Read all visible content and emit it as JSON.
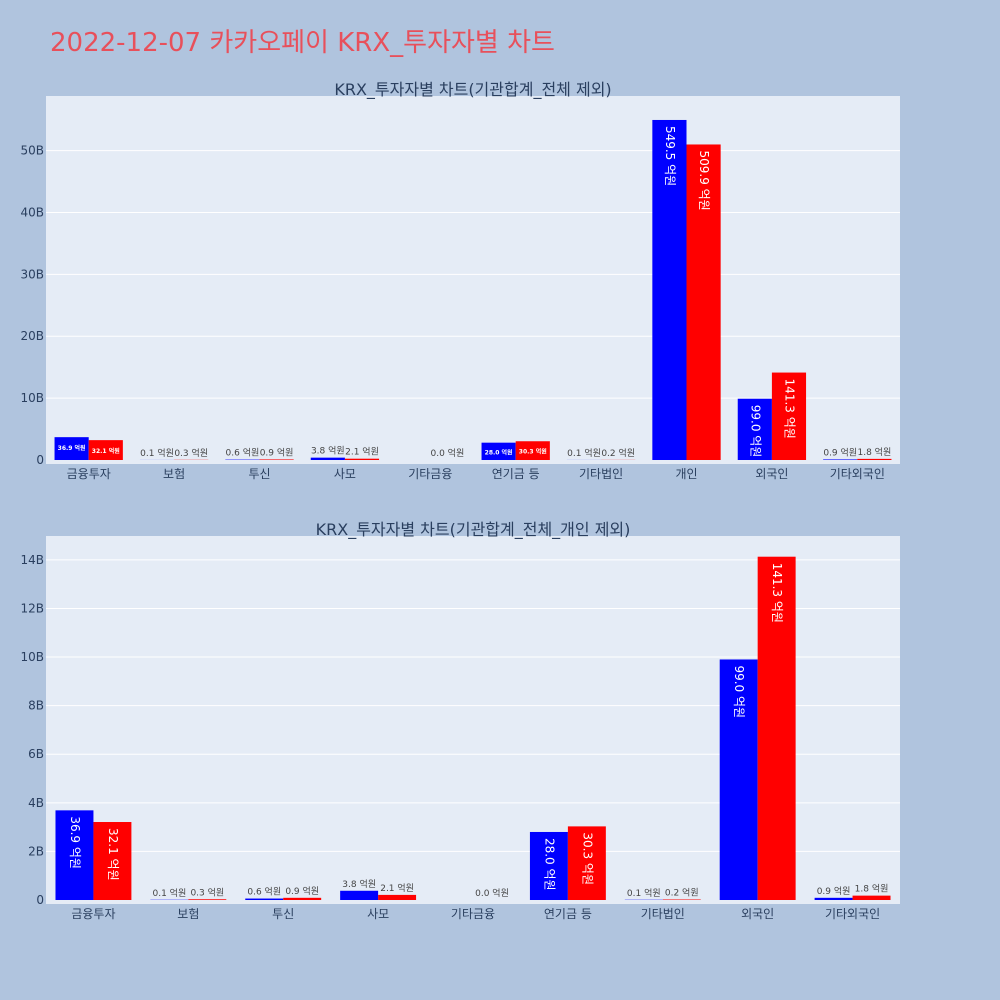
{
  "page": {
    "title": "2022-12-07 카카오페이 KRX_투자자별 차트"
  },
  "colors": {
    "series_a": "#0000ff",
    "series_b": "#ff0000",
    "plot_bg": "#e5ecf6",
    "grid": "#ffffff",
    "text": "#2a3f5f"
  },
  "chart_data": [
    {
      "type": "bar",
      "title": "KRX_투자자별 차트(기관합계_전체 제외)",
      "categories": [
        "금융투자",
        "보험",
        "투신",
        "사모",
        "기타금융",
        "연기금 등",
        "기타법인",
        "개인",
        "외국인",
        "기타외국인"
      ],
      "series": [
        {
          "name": "series-a",
          "values": [
            3.69,
            0.01,
            0.06,
            0.38,
            0.0,
            2.8,
            0.01,
            54.95,
            9.9,
            0.09
          ],
          "labels": [
            "36.9 억원",
            "0.1 억원",
            "0.6 억원",
            "3.8 억원",
            "",
            "28.0 억원",
            "0.1 억원",
            "549.5 억원",
            "99.0 억원",
            "0.9 억원"
          ]
        },
        {
          "name": "series-b",
          "values": [
            3.21,
            0.03,
            0.09,
            0.21,
            0.0,
            3.03,
            0.02,
            50.99,
            14.13,
            0.18
          ],
          "labels": [
            "32.1 억원",
            "0.3 억원",
            "0.9 억원",
            "2.1 억원",
            "0.0 억원",
            "30.3 억원",
            "0.2 억원",
            "509.9 억원",
            "141.3 억원",
            "1.8 억원"
          ]
        }
      ],
      "ylim": [
        0,
        58.5
      ],
      "yticks": [
        0,
        10,
        20,
        30,
        40,
        50
      ],
      "ytick_labels": [
        "0",
        "10B",
        "20B",
        "30B",
        "40B",
        "50B"
      ],
      "xlabel": "",
      "ylabel": ""
    },
    {
      "type": "bar",
      "title": "KRX_투자자별 차트(기관합계_전체_개인 제외)",
      "categories": [
        "금융투자",
        "보험",
        "투신",
        "사모",
        "기타금융",
        "연기금 등",
        "기타법인",
        "외국인",
        "기타외국인"
      ],
      "series": [
        {
          "name": "series-a",
          "values": [
            3.69,
            0.01,
            0.06,
            0.38,
            0.0,
            2.8,
            0.01,
            9.9,
            0.09
          ],
          "labels": [
            "36.9 억원",
            "0.1 억원",
            "0.6 억원",
            "3.8 억원",
            "",
            "28.0 억원",
            "0.1 억원",
            "99.0 억원",
            "0.9 억원"
          ]
        },
        {
          "name": "series-b",
          "values": [
            3.21,
            0.03,
            0.09,
            0.21,
            0.0,
            3.03,
            0.02,
            14.13,
            0.18
          ],
          "labels": [
            "32.1 억원",
            "0.3 억원",
            "0.9 억원",
            "2.1 억원",
            "0.0 억원",
            "30.3 억원",
            "0.2 억원",
            "141.3 억원",
            "1.8 억원"
          ]
        }
      ],
      "ylim": [
        0,
        14.9
      ],
      "yticks": [
        0,
        2,
        4,
        6,
        8,
        10,
        12,
        14
      ],
      "ytick_labels": [
        "0",
        "2B",
        "4B",
        "6B",
        "8B",
        "10B",
        "12B",
        "14B"
      ],
      "xlabel": "",
      "ylabel": ""
    }
  ]
}
